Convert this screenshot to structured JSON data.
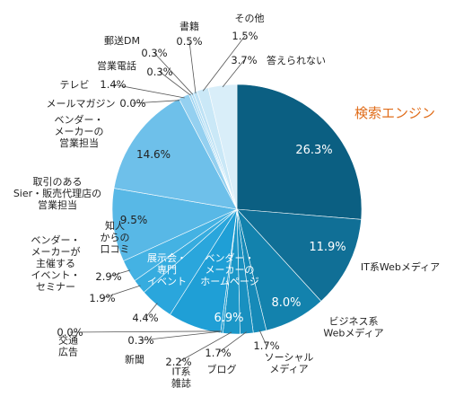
{
  "chart_data": {
    "type": "pie",
    "start_angle_deg": 0,
    "direction": "clockwise",
    "slices": [
      {
        "label": "検索エンジン",
        "value": 26.3,
        "value_label": "26.3%",
        "color": "#0b5f82",
        "highlight": true
      },
      {
        "label": "IT系Webメディア",
        "value": 11.9,
        "value_label": "11.9%",
        "color": "#106f96"
      },
      {
        "label": "ビジネス系\nWebメディア",
        "value": 8.0,
        "value_label": "8.0%",
        "color": "#1382ad"
      },
      {
        "label": "ソーシャル\nメディア",
        "value": 1.7,
        "value_label": "1.7%",
        "color": "#168ab8"
      },
      {
        "label": "ブログ",
        "value": 1.7,
        "value_label": "1.7%",
        "color": "#1990c0"
      },
      {
        "label": "IT系\n雑誌",
        "value": 2.2,
        "value_label": "2.2%",
        "color": "#1c97c8"
      },
      {
        "label": "新聞",
        "value": 0.3,
        "value_label": "0.3%",
        "color": "#1e9ccf"
      },
      {
        "label": "交通\n広告",
        "value": 0.0,
        "value_label": "0.0%",
        "color": "#20a0d2"
      },
      {
        "label": "ベンダー・\nメーカーの\nホームページ",
        "value": 6.9,
        "value_label": "6.9%",
        "color": "#1f9fd6"
      },
      {
        "label": "展示会・\n専門\nイベント",
        "value": 4.4,
        "value_label": "4.4%",
        "color": "#2aa6dc"
      },
      {
        "label": "ベンダー・\nメーカーが\n主催する\nイベント・\nセミナー",
        "value": 1.9,
        "value_label": "1.9%",
        "color": "#36acdf"
      },
      {
        "label": "知人\nからの\n口コミ",
        "value": 2.9,
        "value_label": "2.9%",
        "color": "#44b2e3"
      },
      {
        "label": "取引のある\nSier・販売代理店の\n営業担当",
        "value": 9.5,
        "value_label": "9.5%",
        "color": "#58b8e6"
      },
      {
        "label": "ベンダー・\nメーカーの\n営業担当",
        "value": 14.6,
        "value_label": "14.6%",
        "color": "#6ec0ea"
      },
      {
        "label": "メールマガジン",
        "value": 0.0,
        "value_label": "0.0%",
        "color": "#84caee"
      },
      {
        "label": "テレビ",
        "value": 1.4,
        "value_label": "1.4%",
        "color": "#94d0f0"
      },
      {
        "label": "営業電話",
        "value": 0.3,
        "value_label": "0.3%",
        "color": "#a3d7f2"
      },
      {
        "label": "郵送DM",
        "value": 0.3,
        "value_label": "0.3%",
        "color": "#b1ddf4"
      },
      {
        "label": "書籍",
        "value": 0.5,
        "value_label": "0.5%",
        "color": "#bee2f5"
      },
      {
        "label": "その他",
        "value": 1.5,
        "value_label": "1.5%",
        "color": "#cae8f7"
      },
      {
        "label": "答えられない",
        "value": 3.7,
        "value_label": "3.7%",
        "color": "#d9eef9"
      }
    ]
  }
}
